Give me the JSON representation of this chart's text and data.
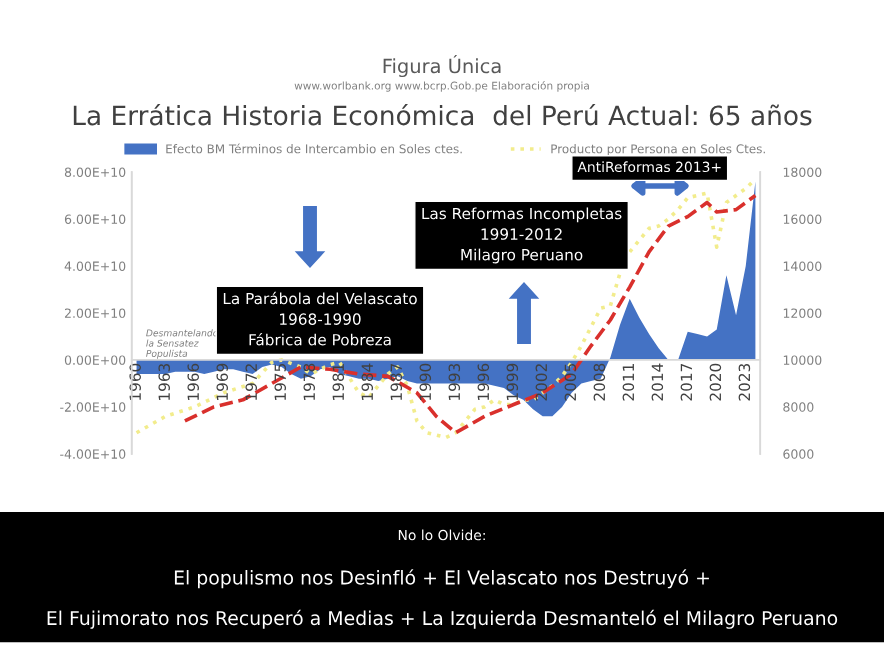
{
  "chart_data": {
    "type": "area",
    "subtitle": "Figura Única",
    "title": "La Errática Historia Económica  del Perú Actual: 65 años",
    "annotations": [
      "www.worlbank.org www.bcrp.Gob.pe Elaboración propia",
      "Desmantelando\nla Sensatez\nPopulista",
      "La Parábola del Velascato\n1968-1990\nFábrica de Pobreza",
      "Las Reformas Incompletas\n1991-2012\nMilagro Peruano",
      "AntiReformas 2013+",
      "No lo Olvide:",
      "El populismo nos Desinfló + El Velascato nos Destruyó +",
      "El Fujimorato nos Recuperó a Medias + La Izquierda Desmanteló el Milagro Peruano"
    ],
    "x": [
      1960,
      1961,
      1962,
      1963,
      1964,
      1965,
      1966,
      1967,
      1968,
      1969,
      1970,
      1971,
      1972,
      1973,
      1974,
      1975,
      1976,
      1977,
      1978,
      1979,
      1980,
      1981,
      1982,
      1983,
      1984,
      1985,
      1986,
      1987,
      1988,
      1989,
      1990,
      1991,
      1992,
      1993,
      1994,
      1995,
      1996,
      1997,
      1998,
      1999,
      2000,
      2001,
      2002,
      2003,
      2004,
      2005,
      2006,
      2007,
      2008,
      2009,
      2010,
      2011,
      2012,
      2013,
      2014,
      2015,
      2016,
      2017,
      2018,
      2019,
      2020,
      2021,
      2022,
      2023,
      2024
    ],
    "series": [
      {
        "name": "Efecto BM Términos de Intercambio en Soles ctes.",
        "color": "#4472c4",
        "axis": "y",
        "values": [
          -6000000000.0,
          -6000000000.0,
          -6000000000.0,
          -6000000000.0,
          -5000000000.0,
          -5000000000.0,
          -5000000000.0,
          -6000000000.0,
          -5000000000.0,
          -4000000000.0,
          -4000000000.0,
          -5000000000.0,
          -6000000000.0,
          -3000000000.0,
          -2000000000.0,
          -3000000000.0,
          -6000000000.0,
          -8000000000.0,
          -7000000000.0,
          -4000000000.0,
          -3000000000.0,
          -6000000000.0,
          -7000000000.0,
          -8000000000.0,
          -8000000000.0,
          -9000000000.0,
          -8000000000.0,
          -7000000000.0,
          -9000000000.0,
          -10000000000.0,
          -10000000000.0,
          -10000000000.0,
          -10000000000.0,
          -10000000000.0,
          -10000000000.0,
          -10000000000.0,
          -10000000000.0,
          -11000000000.0,
          -12000000000.0,
          -15000000000.0,
          -17000000000.0,
          -21000000000.0,
          -24000000000.0,
          -24000000000.0,
          -20000000000.0,
          -14000000000.0,
          -10000000000.0,
          -9000000000.0,
          -8000000000.0,
          1000000000.0,
          15000000000.0,
          26000000000.0,
          18000000000.0,
          11000000000.0,
          5000000000.0,
          0,
          0,
          12000000000.0,
          11000000000.0,
          10000000000.0,
          13000000000.0,
          36000000000.0,
          19000000000.0,
          40000000000.0,
          76000000000.0
        ]
      },
      {
        "name": "Producto por Persona en Soles Ctes.",
        "type": "line",
        "color": "#f2ec8c",
        "axis": "y2",
        "line_style": "dotted",
        "x": [
          1960,
          1963,
          1966,
          1969,
          1972,
          1974,
          1975,
          1977,
          1978,
          1980,
          1981,
          1983,
          1984,
          1985,
          1986,
          1987,
          1988,
          1989,
          1990,
          1992,
          1993,
          1994,
          1995,
          1996,
          1997,
          1998,
          1999,
          2000,
          2001,
          2002,
          2003,
          2004,
          2005,
          2006,
          2007,
          2008,
          2009,
          2010,
          2011,
          2012,
          2013,
          2014,
          2015,
          2016,
          2017,
          2018,
          2019,
          2020,
          2021,
          2022,
          2023,
          2024
        ],
        "values": [
          6900,
          7600,
          8000,
          8600,
          9000,
          9900,
          10000,
          9700,
          9400,
          9800,
          9900,
          8600,
          8400,
          8900,
          9400,
          9700,
          8900,
          7400,
          6900,
          6700,
          6900,
          7400,
          7900,
          8000,
          8300,
          8100,
          8100,
          8300,
          8300,
          8600,
          8900,
          9300,
          9900,
          10600,
          11400,
          12200,
          12300,
          13700,
          14600,
          15100,
          15600,
          15700,
          16000,
          16400,
          16900,
          17000,
          17100,
          14800,
          16700,
          17000,
          17300,
          17700
        ]
      },
      {
        "type": "line",
        "color": "#d9302c",
        "axis": "y2",
        "line_style": "dashed",
        "x": [
          1965,
          1968,
          1971,
          1974,
          1977,
          1980,
          1983,
          1986,
          1989,
          1991,
          1993,
          1996,
          1999,
          2002,
          2005,
          2007,
          2009,
          2011,
          2013,
          2015,
          2017,
          2019,
          2020,
          2022,
          2024
        ],
        "values": [
          7400,
          8000,
          8300,
          9000,
          9700,
          9600,
          9400,
          9300,
          8600,
          7600,
          6900,
          7600,
          8100,
          8600,
          9400,
          10600,
          11700,
          13100,
          14600,
          15700,
          16100,
          16700,
          16300,
          16400,
          17000
        ]
      }
    ],
    "xlim": [
      1959.5,
      2024.5
    ],
    "xticks": [
      1960,
      1963,
      1966,
      1969,
      1972,
      1975,
      1978,
      1981,
      1984,
      1987,
      1990,
      1993,
      1996,
      1999,
      2002,
      2005,
      2008,
      2011,
      2014,
      2017,
      2020,
      2023
    ],
    "ylim": [
      -40000000000.0,
      80000000000.0
    ],
    "yticks": [
      {
        "value": -40000000000.0,
        "label": "-4.00E+10"
      },
      {
        "value": -20000000000.0,
        "label": "-2.00E+10"
      },
      {
        "value": 0,
        "label": "0.00E+00"
      },
      {
        "value": 20000000000.0,
        "label": "2.00E+10"
      },
      {
        "value": 40000000000.0,
        "label": "4.00E+10"
      },
      {
        "value": 60000000000.0,
        "label": "6.00E+10"
      },
      {
        "value": 80000000000.0,
        "label": "8.00E+10"
      }
    ],
    "y2lim": [
      6000,
      18000
    ],
    "y2ticks": [
      6000,
      8000,
      10000,
      12000,
      14000,
      16000,
      18000
    ],
    "legend": "top",
    "grid": false
  }
}
